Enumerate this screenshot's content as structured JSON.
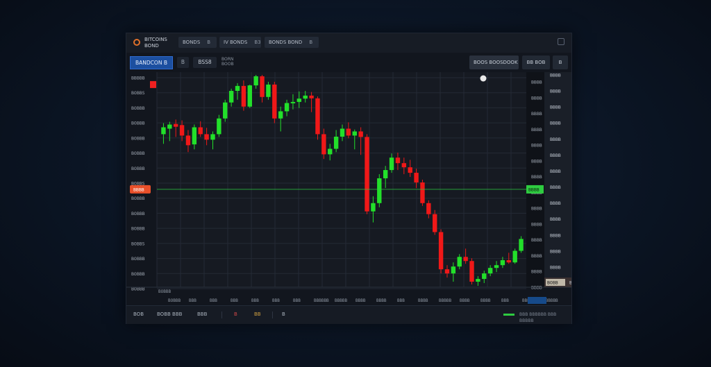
{
  "topbar": {
    "app_title_1": "BITCOINS",
    "app_title_2": "BOND",
    "button_1": "BONDS",
    "button_1_sub": "B",
    "button_2": "IV BONDS",
    "button_2_sub": "B3",
    "button_3": "BONDS BOND",
    "button_3_sub": "B"
  },
  "toolbar": {
    "symbol": "BANDCON",
    "symbol_extra": "B",
    "small_btn": "B",
    "price_box": "BSS8",
    "vol_label_1": "BORN",
    "vol_label_2": "BOOB",
    "search_text": "BOOS",
    "search_text_2": "BOOSDOOK",
    "right_btn_1": "BB",
    "right_btn_1b": "BOB",
    "right_btn_2": "B"
  },
  "chart_data": {
    "type": "candlestick",
    "y_ticks_left": [
      "BBBBB",
      "BOBBS",
      "BOBBB",
      "BOBBB",
      "BOBBB",
      "BOBBB",
      "BOBBB",
      "BOBBS",
      "BOBBB",
      "BOBBB",
      "BOBBB",
      "BOBBS",
      "BOBBB",
      "BOBBB",
      "BOBBB"
    ],
    "y_ticks_right_inner": [
      "BBBB",
      "BBBB",
      "BBBB",
      "BBBB",
      "BBBB",
      "BBBB",
      "BBBB",
      "BBBB",
      "BBBB",
      "BBBB",
      "BBBB",
      "BBBB",
      "BBBB",
      "BBBB"
    ],
    "y_ticks_right_outer": [
      "BBBB",
      "BBBB",
      "BBBB",
      "BBBB",
      "BBBB",
      "BBBB",
      "BBBB",
      "BBBB",
      "BBBB",
      "BBBB",
      "BBBB",
      "BBBB",
      "BBBB",
      "BBBB"
    ],
    "current_price_label_left": "BBBB",
    "current_price_label_right": "BBBB",
    "last_price_label": "BOBB",
    "last_price_sub": "B",
    "x_ticks": [
      "BOBBB",
      "BBB",
      "BBB",
      "BBB",
      "BBB",
      "BBB",
      "BBB",
      "BBBBBB",
      "BBBBB",
      "BBBB",
      "BBBB",
      "BBB",
      "BBBB",
      "BBBBB",
      "BBBB",
      "BBBB",
      "BBB",
      "BBB",
      "BBBBBB"
    ],
    "x_axis_start": "BOBBB",
    "candles": [
      {
        "o": 1205,
        "h": 1245,
        "l": 1170,
        "c": 1230
      },
      {
        "o": 1225,
        "h": 1250,
        "l": 1180,
        "c": 1240
      },
      {
        "o": 1242,
        "h": 1258,
        "l": 1195,
        "c": 1232
      },
      {
        "o": 1238,
        "h": 1255,
        "l": 1180,
        "c": 1200
      },
      {
        "o": 1200,
        "h": 1220,
        "l": 1140,
        "c": 1165
      },
      {
        "o": 1168,
        "h": 1240,
        "l": 1150,
        "c": 1230
      },
      {
        "o": 1230,
        "h": 1252,
        "l": 1195,
        "c": 1205
      },
      {
        "o": 1205,
        "h": 1228,
        "l": 1165,
        "c": 1185
      },
      {
        "o": 1185,
        "h": 1215,
        "l": 1150,
        "c": 1205
      },
      {
        "o": 1205,
        "h": 1275,
        "l": 1195,
        "c": 1262
      },
      {
        "o": 1262,
        "h": 1330,
        "l": 1250,
        "c": 1320
      },
      {
        "o": 1320,
        "h": 1370,
        "l": 1305,
        "c": 1362
      },
      {
        "o": 1362,
        "h": 1390,
        "l": 1330,
        "c": 1380
      },
      {
        "o": 1380,
        "h": 1400,
        "l": 1290,
        "c": 1305
      },
      {
        "o": 1305,
        "h": 1385,
        "l": 1300,
        "c": 1382
      },
      {
        "o": 1382,
        "h": 1420,
        "l": 1370,
        "c": 1415
      },
      {
        "o": 1415,
        "h": 1420,
        "l": 1320,
        "c": 1340
      },
      {
        "o": 1340,
        "h": 1395,
        "l": 1330,
        "c": 1385
      },
      {
        "o": 1385,
        "h": 1395,
        "l": 1245,
        "c": 1262
      },
      {
        "o": 1262,
        "h": 1305,
        "l": 1215,
        "c": 1288
      },
      {
        "o": 1288,
        "h": 1330,
        "l": 1270,
        "c": 1318
      },
      {
        "o": 1318,
        "h": 1350,
        "l": 1295,
        "c": 1322
      },
      {
        "o": 1322,
        "h": 1360,
        "l": 1300,
        "c": 1334
      },
      {
        "o": 1334,
        "h": 1362,
        "l": 1320,
        "c": 1345
      },
      {
        "o": 1345,
        "h": 1358,
        "l": 1285,
        "c": 1335
      },
      {
        "o": 1335,
        "h": 1342,
        "l": 1185,
        "c": 1205
      },
      {
        "o": 1205,
        "h": 1225,
        "l": 1115,
        "c": 1132
      },
      {
        "o": 1132,
        "h": 1170,
        "l": 1110,
        "c": 1152
      },
      {
        "o": 1152,
        "h": 1220,
        "l": 1140,
        "c": 1196
      },
      {
        "o": 1196,
        "h": 1240,
        "l": 1180,
        "c": 1225
      },
      {
        "o": 1225,
        "h": 1248,
        "l": 1190,
        "c": 1200
      },
      {
        "o": 1200,
        "h": 1222,
        "l": 1150,
        "c": 1215
      },
      {
        "o": 1215,
        "h": 1230,
        "l": 1130,
        "c": 1195
      },
      {
        "o": 1195,
        "h": 1205,
        "l": 915,
        "c": 925
      },
      {
        "o": 925,
        "h": 980,
        "l": 885,
        "c": 955
      },
      {
        "o": 955,
        "h": 1060,
        "l": 940,
        "c": 1045
      },
      {
        "o": 1045,
        "h": 1090,
        "l": 1010,
        "c": 1075
      },
      {
        "o": 1075,
        "h": 1135,
        "l": 1065,
        "c": 1120
      },
      {
        "o": 1120,
        "h": 1138,
        "l": 1075,
        "c": 1100
      },
      {
        "o": 1100,
        "h": 1120,
        "l": 1060,
        "c": 1085
      },
      {
        "o": 1085,
        "h": 1112,
        "l": 1050,
        "c": 1065
      },
      {
        "o": 1065,
        "h": 1080,
        "l": 1010,
        "c": 1030
      },
      {
        "o": 1030,
        "h": 1040,
        "l": 945,
        "c": 955
      },
      {
        "o": 955,
        "h": 965,
        "l": 900,
        "c": 915
      },
      {
        "o": 915,
        "h": 930,
        "l": 840,
        "c": 850
      },
      {
        "o": 850,
        "h": 860,
        "l": 700,
        "c": 715
      },
      {
        "o": 715,
        "h": 730,
        "l": 685,
        "c": 700
      },
      {
        "o": 700,
        "h": 740,
        "l": 670,
        "c": 725
      },
      {
        "o": 725,
        "h": 770,
        "l": 715,
        "c": 760
      },
      {
        "o": 760,
        "h": 790,
        "l": 735,
        "c": 745
      },
      {
        "o": 745,
        "h": 755,
        "l": 660,
        "c": 670
      },
      {
        "o": 670,
        "h": 690,
        "l": 655,
        "c": 680
      },
      {
        "o": 680,
        "h": 710,
        "l": 665,
        "c": 700
      },
      {
        "o": 700,
        "h": 730,
        "l": 690,
        "c": 720
      },
      {
        "o": 720,
        "h": 745,
        "l": 705,
        "c": 730
      },
      {
        "o": 730,
        "h": 760,
        "l": 720,
        "c": 748
      },
      {
        "o": 748,
        "h": 775,
        "l": 735,
        "c": 740
      },
      {
        "o": 740,
        "h": 790,
        "l": 735,
        "c": 782
      },
      {
        "o": 782,
        "h": 835,
        "l": 775,
        "c": 825
      }
    ],
    "y_min": 650,
    "y_max": 1430,
    "current_price": 1005,
    "grid": true
  },
  "status": {
    "left_1": "BOB",
    "left_2": "BOBB BBB",
    "left_3": "BBB",
    "icon_a": "B",
    "icon_b": "BB",
    "icon_c": "B",
    "right_text": "BBB BBBBBB BBB BBBBB"
  },
  "colors": {
    "up": "#22e02a",
    "down": "#f01818",
    "price_line": "#2ecc40",
    "left_price_label": "#e9502a"
  }
}
